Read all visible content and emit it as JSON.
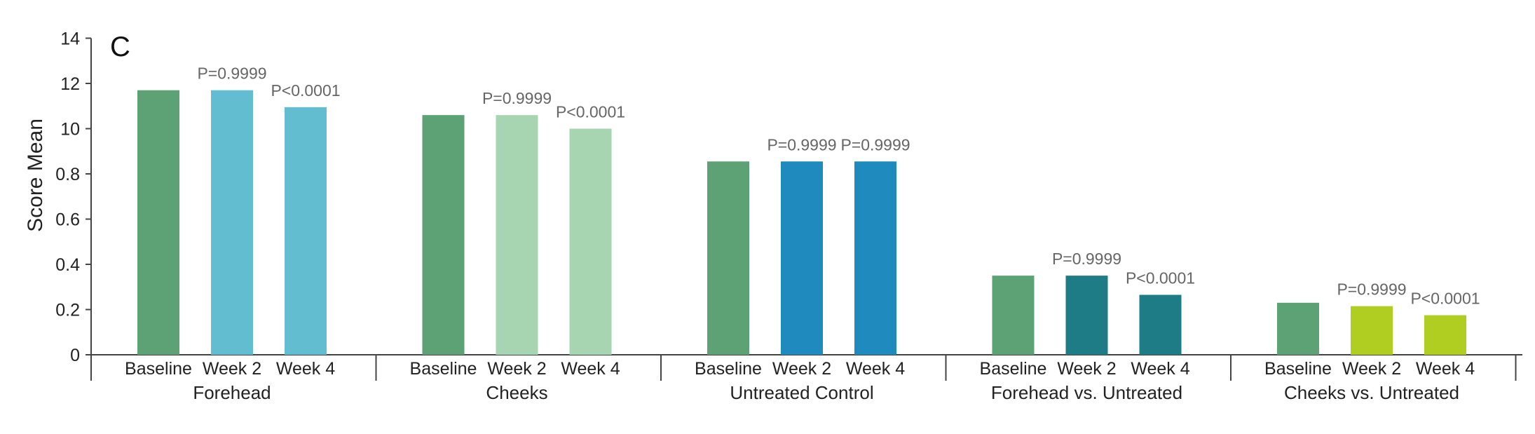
{
  "panel_letter": "C",
  "chart_data": {
    "type": "bar",
    "ylabel": "Score Mean",
    "ytick_labels": [
      "0",
      "0.2",
      "0.4",
      "0.6",
      "0.8",
      "10",
      "12",
      "14"
    ],
    "groups": [
      {
        "name": "Forehead",
        "bars": [
          {
            "label": "Baseline",
            "value": 1.17,
            "color": "#5ca274",
            "pvalue": ""
          },
          {
            "label": "Week 2",
            "value": 1.17,
            "color": "#61bdcf",
            "pvalue": "P=0.9999"
          },
          {
            "label": "Week 4",
            "value": 1.095,
            "color": "#61bdcf",
            "pvalue": "P<0.0001"
          }
        ]
      },
      {
        "name": "Cheeks",
        "bars": [
          {
            "label": "Baseline",
            "value": 1.06,
            "color": "#5ca274",
            "pvalue": ""
          },
          {
            "label": "Week 2",
            "value": 1.06,
            "color": "#a7d5b1",
            "pvalue": "P=0.9999"
          },
          {
            "label": "Week 4",
            "value": 1.0,
            "color": "#a7d5b1",
            "pvalue": "P<0.0001"
          }
        ]
      },
      {
        "name": "Untreated Control",
        "bars": [
          {
            "label": "Baseline",
            "value": 0.855,
            "color": "#5ca274",
            "pvalue": ""
          },
          {
            "label": "Week 2",
            "value": 0.855,
            "color": "#1f8abe",
            "pvalue": "P=0.9999"
          },
          {
            "label": "Week 4",
            "value": 0.855,
            "color": "#1f8abe",
            "pvalue": "P=0.9999"
          }
        ]
      },
      {
        "name": "Forehead vs. Untreated",
        "bars": [
          {
            "label": "Baseline",
            "value": 0.35,
            "color": "#5ca274",
            "pvalue": ""
          },
          {
            "label": "Week 2",
            "value": 0.35,
            "color": "#1d7c86",
            "pvalue": "P=0.9999"
          },
          {
            "label": "Week 4",
            "value": 0.265,
            "color": "#1d7c86",
            "pvalue": "P<0.0001"
          }
        ]
      },
      {
        "name": "Cheeks vs. Untreated",
        "bars": [
          {
            "label": "Baseline",
            "value": 0.23,
            "color": "#5ca274",
            "pvalue": ""
          },
          {
            "label": "Week 2",
            "value": 0.215,
            "color": "#b0ce22",
            "pvalue": "P=0.9999"
          },
          {
            "label": "Week 4",
            "value": 0.175,
            "color": "#b0ce22",
            "pvalue": "P<0.0001"
          }
        ]
      }
    ]
  }
}
